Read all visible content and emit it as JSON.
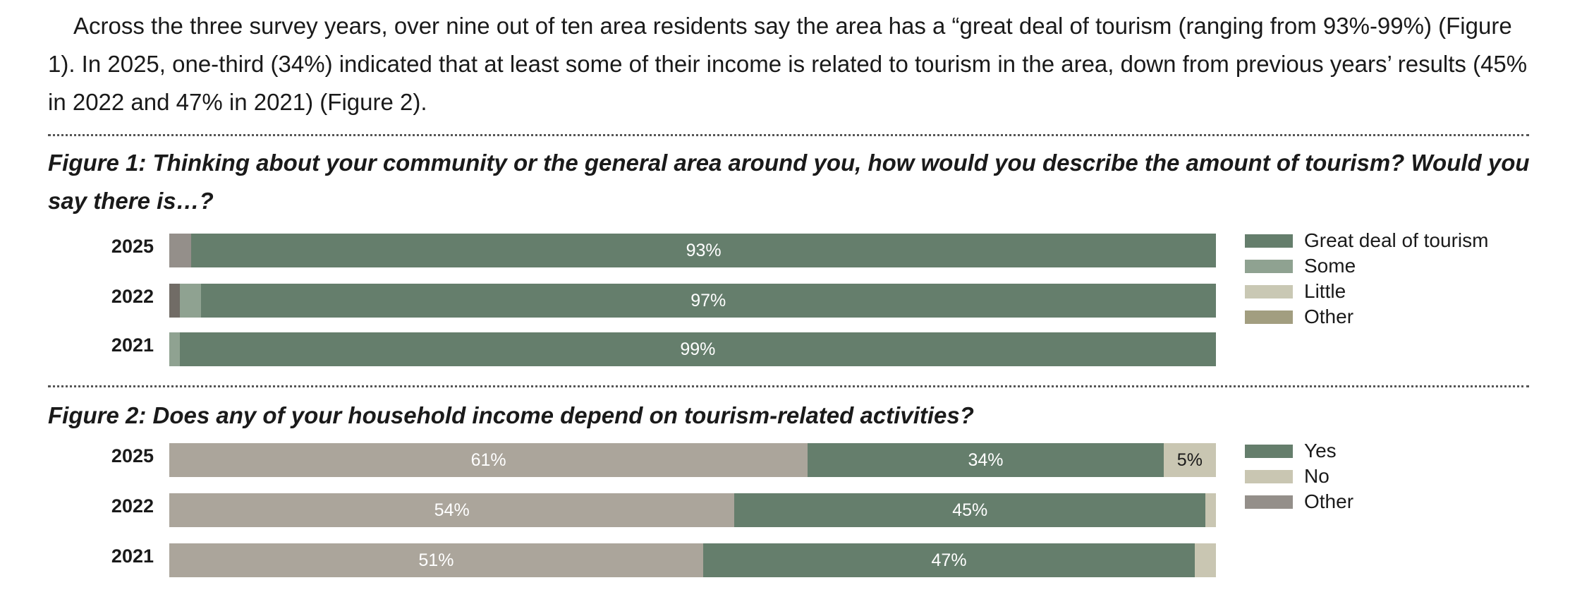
{
  "paragraph": "Across the three survey years, over nine out of ten area residents say the area has a “great deal of tourism (ranging from 93%-99%) (Figure 1). In 2025, one-third (34%) indicated that at least some of their income is related to tourism in the area, down from previous years’ results (45% in 2022 and 47% in 2021) (Figure 2).",
  "chart_data": [
    {
      "type": "bar",
      "orientation": "horizontal-stacked",
      "title": "Figure 1: Thinking about your community or the general area around you, how would you describe the amount of tourism? Would you say there is…?",
      "categories": [
        "2025",
        "2022",
        "2021"
      ],
      "legend": [
        {
          "name": "Great deal of tourism",
          "color": "#657e6c"
        },
        {
          "name": "Some",
          "color": "#8fa291"
        },
        {
          "name": "Little",
          "color": "#c9c8b4"
        },
        {
          "name": "Other",
          "color": "#a29e80"
        }
      ],
      "rows": [
        {
          "year": "2025",
          "segments": [
            {
              "value": 2,
              "color": "#948f8a",
              "label": ""
            },
            {
              "value": 93,
              "color": "#657e6c",
              "label": "93%"
            }
          ]
        },
        {
          "year": "2022",
          "segments": [
            {
              "value": 1,
              "color": "#716c66",
              "label": ""
            },
            {
              "value": 2,
              "color": "#8fa291",
              "label": ""
            },
            {
              "value": 97,
              "color": "#657e6c",
              "label": "97%"
            }
          ]
        },
        {
          "year": "2021",
          "segments": [
            {
              "value": 1,
              "color": "#8fa291",
              "label": ""
            },
            {
              "value": 99,
              "color": "#657e6c",
              "label": "99%"
            }
          ]
        }
      ],
      "legend_position": "right",
      "grid": false
    },
    {
      "type": "bar",
      "orientation": "horizontal-stacked",
      "title": "Figure 2: Does any of your household income depend on tourism-related activities?",
      "categories": [
        "2025",
        "2022",
        "2021"
      ],
      "legend": [
        {
          "name": "Yes",
          "color": "#657e6c"
        },
        {
          "name": "No",
          "color": "#c9c6b2"
        },
        {
          "name": "Other",
          "color": "#948f8a"
        }
      ],
      "rows": [
        {
          "year": "2025",
          "segments": [
            {
              "value": 61,
              "color": "#aba59b",
              "label": "61%"
            },
            {
              "value": 34,
              "color": "#657e6c",
              "label": "34%"
            },
            {
              "value": 5,
              "color": "#c9c6b2",
              "label": "5%",
              "dark": true
            }
          ]
        },
        {
          "year": "2022",
          "segments": [
            {
              "value": 54,
              "color": "#aba59b",
              "label": "54%"
            },
            {
              "value": 45,
              "color": "#657e6c",
              "label": "45%"
            },
            {
              "value": 1,
              "color": "#c9c6b2",
              "label": ""
            }
          ]
        },
        {
          "year": "2021",
          "segments": [
            {
              "value": 51,
              "color": "#aba59b",
              "label": "51%"
            },
            {
              "value": 47,
              "color": "#657e6c",
              "label": "47%"
            },
            {
              "value": 2,
              "color": "#c9c6b2",
              "label": ""
            }
          ]
        }
      ],
      "legend_position": "right",
      "grid": false
    }
  ]
}
